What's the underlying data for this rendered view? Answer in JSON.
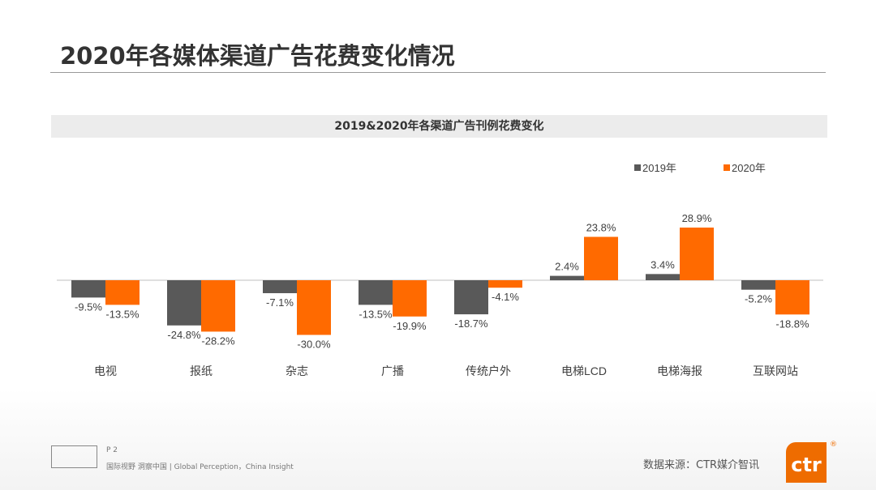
{
  "page_title": "2020年各媒体渠道广告花费变化情况",
  "footer": {
    "page": "P 2",
    "slogan": "国际视野  洞察中国 |  Global Perception，China Insight",
    "source": "数据来源：CTR媒介智讯",
    "logo_text": "ctr",
    "reg_mark": "®"
  },
  "colors": {
    "2019": "#595959",
    "2020": "#ff6a00"
  },
  "chart_data": {
    "type": "bar",
    "title": "2019&2020年各渠道广告刊例花费变化",
    "categories": [
      "电视",
      "报纸",
      "杂志",
      "广播",
      "传统户外",
      "电梯LCD",
      "电梯海报",
      "互联网站"
    ],
    "series": [
      {
        "name": "2019年",
        "values": [
          -9.5,
          -24.8,
          -7.1,
          -13.5,
          -18.7,
          2.4,
          3.4,
          -5.2
        ],
        "labels": [
          "-9.5%",
          "-24.8%",
          "-7.1%",
          "-13.5%",
          "-18.7%",
          "2.4%",
          "3.4%",
          "-5.2%"
        ]
      },
      {
        "name": "2020年",
        "values": [
          -13.5,
          -28.2,
          -30.0,
          -19.9,
          -4.1,
          23.8,
          28.9,
          -18.8
        ],
        "labels": [
          "-13.5%",
          "-28.2%",
          "-30.0%",
          "-19.9%",
          "-4.1%",
          "23.8%",
          "28.9%",
          "-18.8%"
        ]
      }
    ],
    "legend": "top-right",
    "grid": false
  }
}
